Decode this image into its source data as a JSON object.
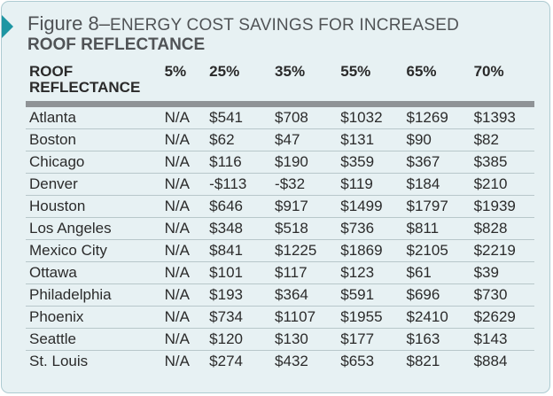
{
  "figure": {
    "label": "Figure 8–",
    "title_line1": "ENERGY COST SAVINGS FOR INCREASED",
    "title_line2": "ROOF REFLECTANCE"
  },
  "table": {
    "headers": [
      "ROOF REFLECTANCE",
      "5%",
      "25%",
      "35%",
      "55%",
      "65%",
      "70%"
    ],
    "rows": [
      [
        "Atlanta",
        "N/A",
        "$541",
        "$708",
        "$1032",
        "$1269",
        "$1393"
      ],
      [
        "Boston",
        "N/A",
        "$62",
        "$47",
        "$131",
        "$90",
        "$82"
      ],
      [
        "Chicago",
        "N/A",
        "$116",
        "$190",
        "$359",
        "$367",
        "$385"
      ],
      [
        "Denver",
        "N/A",
        "-$113",
        "-$32",
        "$119",
        "$184",
        "$210"
      ],
      [
        "Houston",
        "N/A",
        "$646",
        "$917",
        "$1499",
        "$1797",
        "$1939"
      ],
      [
        "Los Angeles",
        "N/A",
        "$348",
        "$518",
        "$736",
        "$811",
        "$828"
      ],
      [
        "Mexico City",
        "N/A",
        "$841",
        "$1225",
        "$1869",
        "$2105",
        "$2219"
      ],
      [
        "Ottawa",
        "N/A",
        "$101",
        "$117",
        "$123",
        "$61",
        "$39"
      ],
      [
        "Philadelphia",
        "N/A",
        "$193",
        "$364",
        "$591",
        "$696",
        "$730"
      ],
      [
        "Phoenix",
        "N/A",
        "$734",
        "$1107",
        "$1955",
        "$2410",
        "$2629"
      ],
      [
        "Seattle",
        "N/A",
        "$120",
        "$130",
        "$177",
        "$163",
        "$143"
      ],
      [
        "St. Louis",
        "N/A",
        "$274",
        "$432",
        "$653",
        "$821",
        "$884"
      ]
    ]
  },
  "colors": {
    "panel_background": "#e7f1f3",
    "accent_arrow": "#1e96a3",
    "header_rule": "#8f9396",
    "row_divider": "#b8c7ca"
  }
}
